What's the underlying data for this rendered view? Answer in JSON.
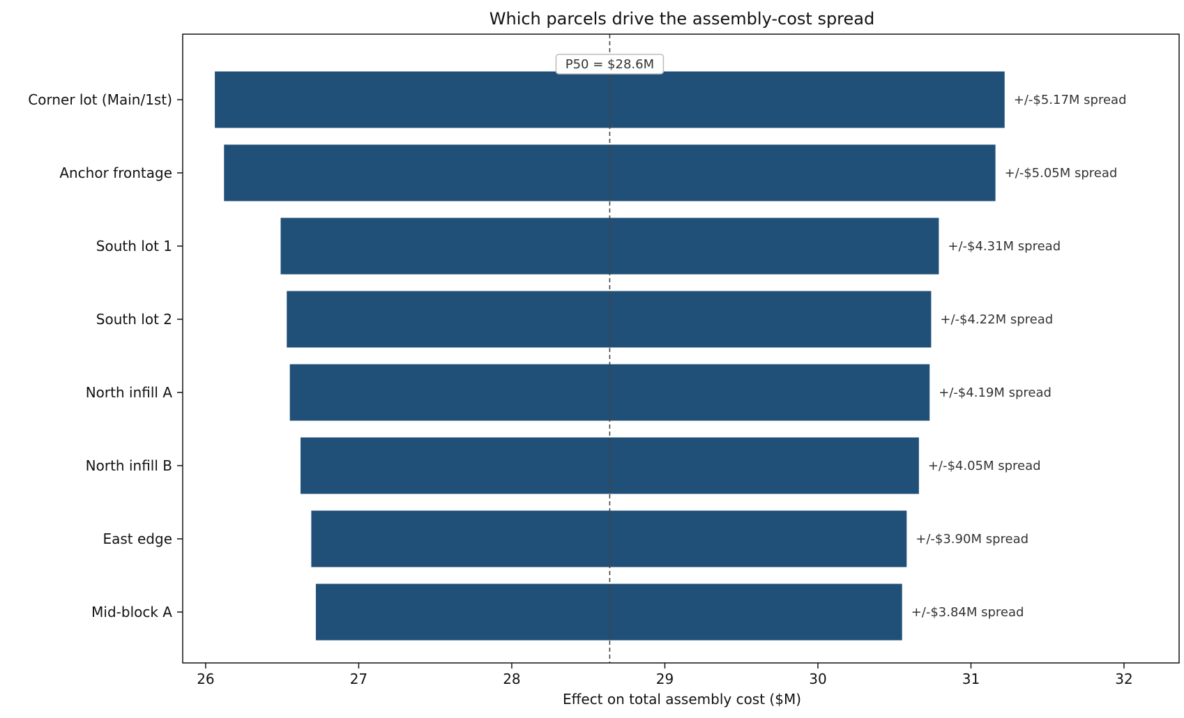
{
  "chart_data": {
    "type": "bar",
    "orientation": "horizontal",
    "title": "Which parcels drive the assembly-cost spread",
    "xlabel": "Effect on total assembly cost  ($M)",
    "ylabel": "",
    "xlim": [
      25.85,
      32.36
    ],
    "xticks": [
      "26",
      "27",
      "28",
      "29",
      "30",
      "31",
      "32"
    ],
    "grid": false,
    "legend": "none",
    "bar_color": "#204f78",
    "reference_line": {
      "value": 28.64,
      "label": "P50 = $28.6M",
      "style": "dashed",
      "color": "#444444"
    },
    "categories": [
      "Corner lot (Main/1st)",
      "Anchor frontage",
      "South lot 1",
      "South lot 2",
      "North infill A",
      "North infill B",
      "East edge",
      "Mid-block A"
    ],
    "low": [
      26.06,
      26.12,
      26.49,
      26.53,
      26.55,
      26.62,
      26.69,
      26.72
    ],
    "high": [
      31.22,
      31.16,
      30.79,
      30.74,
      30.73,
      30.66,
      30.58,
      30.55
    ],
    "data_labels": [
      "+/-$5.17M spread",
      "+/-$5.05M spread",
      "+/-$4.31M spread",
      "+/-$4.22M spread",
      "+/-$4.19M spread",
      "+/-$4.05M spread",
      "+/-$3.90M spread",
      "+/-$3.84M spread"
    ]
  }
}
